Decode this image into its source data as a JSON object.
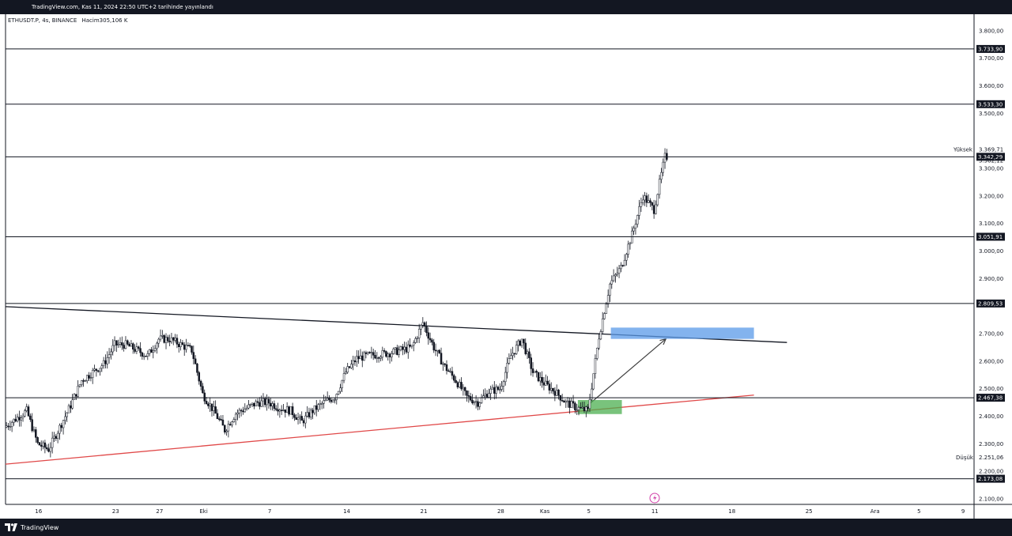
{
  "header": {
    "published": "TradingView.com, Kas 11, 2024 22:50 UTC+2 tarihinde yayınlandı"
  },
  "footer": {
    "brand": "TradingView"
  },
  "colors": {
    "frame": "#131722",
    "candle": "#131722",
    "support_line": "#e04848",
    "resistance_line": "#131722",
    "blue_zone": "#5a9ae8",
    "green_zone": "#4caf50",
    "arrow": "#404040",
    "level_label_bg": "#131722",
    "flash_icon": "#d040a8"
  },
  "chart_data": {
    "type": "candlestick",
    "symbol_label": "ETHUSDT.P, 4s, BINANCE",
    "volume_label": "Hacim305,106 K",
    "y_axis": {
      "ylim": [
        2080,
        3860
      ],
      "ticks": [
        {
          "value": 3800,
          "label": "3.800,00"
        },
        {
          "value": 3700,
          "label": "3.700,00"
        },
        {
          "value": 3600,
          "label": "3.600,00"
        },
        {
          "value": 3500,
          "label": "3.500,00"
        },
        {
          "value": 3300,
          "label": "3.300,00"
        },
        {
          "value": 3200,
          "label": "3.200,00"
        },
        {
          "value": 3100,
          "label": "3.100,00"
        },
        {
          "value": 3000,
          "label": "3.000,00"
        },
        {
          "value": 2900,
          "label": "2.900,00"
        },
        {
          "value": 2700,
          "label": "2.700,00"
        },
        {
          "value": 2600,
          "label": "2.600,00"
        },
        {
          "value": 2500,
          "label": "2.500,00"
        },
        {
          "value": 2400,
          "label": "2.400,00"
        },
        {
          "value": 2300,
          "label": "2.300,00"
        },
        {
          "value": 2200,
          "label": "2.200,00"
        },
        {
          "value": 2100,
          "label": "2.100,00"
        }
      ]
    },
    "x_axis": {
      "date_range": [
        "2024-09-13",
        "2024-12-10"
      ],
      "ticks": [
        {
          "date": "2024-09-16",
          "label": "16"
        },
        {
          "date": "2024-09-23",
          "label": "23"
        },
        {
          "date": "2024-09-27",
          "label": "27"
        },
        {
          "date": "2024-10-01",
          "label": "Eki"
        },
        {
          "date": "2024-10-07",
          "label": "7"
        },
        {
          "date": "2024-10-14",
          "label": "14"
        },
        {
          "date": "2024-10-21",
          "label": "21"
        },
        {
          "date": "2024-10-28",
          "label": "28"
        },
        {
          "date": "2024-11-01",
          "label": "Kas"
        },
        {
          "date": "2024-11-05",
          "label": "5"
        },
        {
          "date": "2024-11-11",
          "label": "11"
        },
        {
          "date": "2024-11-18",
          "label": "18"
        },
        {
          "date": "2024-11-25",
          "label": "25"
        },
        {
          "date": "2024-12-01",
          "label": "Ara"
        },
        {
          "date": "2024-12-05",
          "label": "5"
        },
        {
          "date": "2024-12-09",
          "label": "9"
        }
      ]
    },
    "price_path": [
      [
        "2024-09-13",
        2360
      ],
      [
        "2024-09-15",
        2420
      ],
      [
        "2024-09-16",
        2300
      ],
      [
        "2024-09-17",
        2280
      ],
      [
        "2024-09-18",
        2360
      ],
      [
        "2024-09-19",
        2440
      ],
      [
        "2024-09-20",
        2530
      ],
      [
        "2024-09-22",
        2590
      ],
      [
        "2024-09-23",
        2660
      ],
      [
        "2024-09-24",
        2660
      ],
      [
        "2024-09-26",
        2620
      ],
      [
        "2024-09-27",
        2680
      ],
      [
        "2024-09-28",
        2680
      ],
      [
        "2024-09-30",
        2640
      ],
      [
        "2024-10-01",
        2480
      ],
      [
        "2024-10-02",
        2420
      ],
      [
        "2024-10-03",
        2350
      ],
      [
        "2024-10-04",
        2410
      ],
      [
        "2024-10-06",
        2450
      ],
      [
        "2024-10-07",
        2450
      ],
      [
        "2024-10-08",
        2430
      ],
      [
        "2024-10-09",
        2420
      ],
      [
        "2024-10-10",
        2380
      ],
      [
        "2024-10-11",
        2420
      ],
      [
        "2024-10-12",
        2450
      ],
      [
        "2024-10-13",
        2470
      ],
      [
        "2024-10-14",
        2560
      ],
      [
        "2024-10-15",
        2610
      ],
      [
        "2024-10-16",
        2620
      ],
      [
        "2024-10-18",
        2630
      ],
      [
        "2024-10-20",
        2650
      ],
      [
        "2024-10-21",
        2740
      ],
      [
        "2024-10-22",
        2650
      ],
      [
        "2024-10-23",
        2580
      ],
      [
        "2024-10-24",
        2530
      ],
      [
        "2024-10-25",
        2470
      ],
      [
        "2024-10-26",
        2450
      ],
      [
        "2024-10-27",
        2490
      ],
      [
        "2024-10-28",
        2500
      ],
      [
        "2024-10-29",
        2620
      ],
      [
        "2024-10-30",
        2680
      ],
      [
        "2024-10-31",
        2560
      ],
      [
        "2024-11-01",
        2520
      ],
      [
        "2024-11-02",
        2490
      ],
      [
        "2024-11-03",
        2450
      ],
      [
        "2024-11-04",
        2430
      ],
      [
        "2024-11-05",
        2420
      ],
      [
        "2024-11-06",
        2690
      ],
      [
        "2024-11-07",
        2880
      ],
      [
        "2024-11-08",
        2940
      ],
      [
        "2024-11-09",
        3060
      ],
      [
        "2024-11-10",
        3200
      ],
      [
        "2024-11-11",
        3150
      ],
      [
        "2024-11-12",
        3342
      ]
    ],
    "horizontal_levels": [
      {
        "value": 3733.9,
        "label": "3.733,90"
      },
      {
        "value": 3533.3,
        "label": "3.533,30"
      },
      {
        "value": 3342.29,
        "label": "3.342,29"
      },
      {
        "value": 3051.91,
        "label": "3.051,91"
      },
      {
        "value": 2809.53,
        "label": "2.809,53"
      },
      {
        "value": 2467.38,
        "label": "2.467,38"
      },
      {
        "value": 2173.08,
        "label": "2.173,08"
      }
    ],
    "trendlines": [
      {
        "name": "resistance",
        "from": [
          "2024-09-13",
          2798
        ],
        "to": [
          "2024-11-23",
          2668
        ]
      },
      {
        "name": "support",
        "from": [
          "2024-09-13",
          2226
        ],
        "to": [
          "2024-11-20",
          2477
        ]
      }
    ],
    "zones": [
      {
        "name": "blue",
        "from": [
          "2024-11-07",
          2722
        ],
        "to": [
          "2024-11-20",
          2681
        ]
      },
      {
        "name": "green",
        "from": [
          "2024-11-04",
          2459
        ],
        "to": [
          "2024-11-08",
          2408
        ]
      }
    ],
    "arrow": {
      "from": [
        "2024-11-05",
        2443
      ],
      "to": [
        "2024-11-12",
        2681
      ]
    },
    "stats": {
      "high_label": "Yüksek",
      "high_value": "3.369,71",
      "last_value": "3.362,12",
      "low_label": "Düşük",
      "low_value": "2.251,06"
    }
  }
}
